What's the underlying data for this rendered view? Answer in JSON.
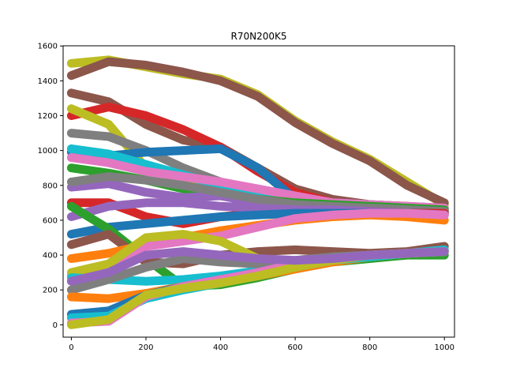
{
  "chart_data": {
    "type": "line",
    "title": "R70N200K5",
    "xlabel": "",
    "ylabel": "",
    "xlim": [
      -22,
      1027
    ],
    "ylim": [
      -71,
      1601
    ],
    "xticks": [
      0,
      200,
      400,
      600,
      800,
      1000
    ],
    "yticks": [
      0,
      200,
      400,
      600,
      800,
      1000,
      1200,
      1400,
      1600
    ],
    "grid": false,
    "legend": "none",
    "palette": [
      "#1f77b4",
      "#ff7f0e",
      "#2ca02c",
      "#d62728",
      "#9467bd",
      "#8c564b",
      "#e377c2",
      "#7f7f7f",
      "#bcbd22",
      "#17becf"
    ],
    "series": [
      {
        "color": "#bcbd22",
        "x": [
          0,
          100,
          200,
          300,
          400,
          500,
          600,
          700,
          800,
          900,
          1000
        ],
        "y": [
          1500,
          1520,
          1480,
          1440,
          1410,
          1320,
          1170,
          1050,
          950,
          820,
          690
        ]
      },
      {
        "color": "#8c564b",
        "x": [
          0,
          100,
          200,
          300,
          400,
          500,
          600,
          700,
          800,
          900,
          1000
        ],
        "y": [
          1430,
          1510,
          1490,
          1450,
          1400,
          1310,
          1160,
          1040,
          940,
          800,
          700
        ]
      },
      {
        "color": "#8c564b",
        "x": [
          0,
          100,
          200,
          300,
          400,
          500,
          600,
          700,
          800,
          900,
          1000
        ],
        "y": [
          1330,
          1280,
          1150,
          1060,
          1020,
          900,
          780,
          720,
          690,
          680,
          660
        ]
      },
      {
        "color": "#d62728",
        "x": [
          0,
          100,
          200,
          300,
          400,
          500,
          600,
          700,
          800,
          900,
          1000
        ],
        "y": [
          1200,
          1250,
          1200,
          1120,
          1020,
          880,
          760,
          700,
          680,
          660,
          640
        ]
      },
      {
        "color": "#bcbd22",
        "x": [
          0,
          100,
          200,
          300,
          400,
          500,
          600,
          700,
          800,
          900,
          1000
        ],
        "y": [
          1240,
          1150,
          900,
          830,
          780,
          740,
          700,
          680,
          670,
          660,
          650
        ]
      },
      {
        "color": "#7f7f7f",
        "x": [
          0,
          100,
          200,
          300,
          400,
          500,
          600,
          700,
          800,
          900,
          1000
        ],
        "y": [
          1100,
          1080,
          1000,
          900,
          820,
          760,
          720,
          700,
          690,
          680,
          670
        ]
      },
      {
        "color": "#1f77b4",
        "x": [
          0,
          100,
          200,
          300,
          400,
          500,
          600,
          700,
          800,
          900,
          1000
        ],
        "y": [
          990,
          970,
          990,
          1000,
          1010,
          900,
          720,
          690,
          670,
          660,
          650
        ]
      },
      {
        "color": "#17becf",
        "x": [
          0,
          100,
          200,
          300,
          400,
          500,
          600,
          700,
          800,
          900,
          1000
        ],
        "y": [
          1010,
          980,
          920,
          860,
          800,
          760,
          710,
          690,
          680,
          670,
          670
        ]
      },
      {
        "color": "#e377c2",
        "x": [
          0,
          100,
          200,
          300,
          400,
          500,
          600,
          700,
          800,
          900,
          1000
        ],
        "y": [
          960,
          930,
          880,
          850,
          820,
          780,
          740,
          700,
          690,
          680,
          670
        ]
      },
      {
        "color": "#2ca02c",
        "x": [
          0,
          100,
          200,
          300,
          400,
          500,
          600,
          700,
          800,
          900,
          1000
        ],
        "y": [
          900,
          870,
          830,
          780,
          740,
          720,
          700,
          690,
          680,
          670,
          660
        ]
      },
      {
        "color": "#9467bd",
        "x": [
          0,
          100,
          200,
          300,
          400,
          500,
          600,
          700,
          800,
          900,
          1000
        ],
        "y": [
          790,
          810,
          760,
          730,
          740,
          700,
          680,
          670,
          670,
          660,
          650
        ]
      },
      {
        "color": "#7f7f7f",
        "x": [
          0,
          100,
          200,
          300,
          400,
          500,
          600,
          700,
          800,
          900,
          1000
        ],
        "y": [
          820,
          850,
          830,
          800,
          760,
          720,
          690,
          680,
          670,
          660,
          650
        ]
      },
      {
        "color": "#d62728",
        "x": [
          0,
          100,
          200,
          300,
          400,
          500,
          600,
          700,
          800,
          900,
          1000
        ],
        "y": [
          700,
          700,
          620,
          580,
          620,
          640,
          650,
          650,
          650,
          640,
          640
        ]
      },
      {
        "color": "#9467bd",
        "x": [
          0,
          100,
          200,
          300,
          400,
          500,
          600,
          700,
          800,
          900,
          1000
        ],
        "y": [
          620,
          680,
          700,
          700,
          680,
          670,
          660,
          660,
          650,
          640,
          630
        ]
      },
      {
        "color": "#1f77b4",
        "x": [
          0,
          100,
          200,
          300,
          400,
          500,
          600,
          700,
          800,
          900,
          1000
        ],
        "y": [
          520,
          560,
          580,
          600,
          620,
          630,
          640,
          640,
          640,
          640,
          630
        ]
      },
      {
        "color": "#2ca02c",
        "x": [
          0,
          100,
          200,
          300,
          400,
          500,
          600,
          700,
          800,
          900,
          1000
        ],
        "y": [
          680,
          550,
          380,
          220,
          230,
          270,
          320,
          360,
          380,
          400,
          400
        ]
      },
      {
        "color": "#8c564b",
        "x": [
          0,
          100,
          200,
          300,
          400,
          500,
          600,
          700,
          800,
          900,
          1000
        ],
        "y": [
          460,
          520,
          360,
          350,
          400,
          420,
          430,
          420,
          410,
          420,
          450
        ]
      },
      {
        "color": "#ff7f0e",
        "x": [
          0,
          100,
          200,
          300,
          400,
          500,
          600,
          700,
          800,
          900,
          1000
        ],
        "y": [
          380,
          410,
          460,
          500,
          540,
          570,
          600,
          620,
          630,
          620,
          600
        ]
      },
      {
        "color": "#e377c2",
        "x": [
          0,
          100,
          200,
          300,
          400,
          500,
          600,
          700,
          800,
          900,
          1000
        ],
        "y": [
          280,
          320,
          450,
          480,
          510,
          560,
          610,
          630,
          640,
          640,
          630
        ]
      },
      {
        "color": "#bcbd22",
        "x": [
          0,
          100,
          200,
          300,
          400,
          500,
          600,
          700,
          800,
          900,
          1000
        ],
        "y": [
          300,
          350,
          500,
          520,
          480,
          380,
          360,
          380,
          400,
          410,
          420
        ]
      },
      {
        "color": "#17becf",
        "x": [
          0,
          100,
          200,
          300,
          400,
          500,
          600,
          700,
          800,
          900,
          1000
        ],
        "y": [
          270,
          260,
          250,
          260,
          280,
          310,
          340,
          370,
          390,
          410,
          420
        ]
      },
      {
        "color": "#7f7f7f",
        "x": [
          0,
          100,
          200,
          300,
          400,
          500,
          600,
          700,
          800,
          900,
          1000
        ],
        "y": [
          200,
          260,
          330,
          380,
          360,
          350,
          370,
          390,
          400,
          410,
          420
        ]
      },
      {
        "color": "#ff7f0e",
        "x": [
          0,
          100,
          200,
          300,
          400,
          500,
          600,
          700,
          800,
          900,
          1000
        ],
        "y": [
          160,
          150,
          180,
          220,
          250,
          280,
          320,
          360,
          390,
          410,
          420
        ]
      },
      {
        "color": "#1f77b4",
        "x": [
          0,
          100,
          200,
          300,
          400,
          500,
          600,
          700,
          800,
          900,
          1000
        ],
        "y": [
          60,
          80,
          170,
          220,
          260,
          300,
          350,
          380,
          400,
          410,
          420
        ]
      },
      {
        "color": "#17becf",
        "x": [
          0,
          100,
          200,
          300,
          400,
          500,
          600,
          700,
          800,
          900,
          1000
        ],
        "y": [
          40,
          50,
          150,
          200,
          240,
          290,
          330,
          370,
          390,
          410,
          430
        ]
      },
      {
        "color": "#e377c2",
        "x": [
          0,
          100,
          200,
          300,
          400,
          500,
          600,
          700,
          800,
          900,
          1000
        ],
        "y": [
          10,
          20,
          160,
          220,
          260,
          300,
          350,
          380,
          400,
          410,
          420
        ]
      },
      {
        "color": "#bcbd22",
        "x": [
          0,
          100,
          200,
          300,
          400,
          500,
          600,
          700,
          800,
          900,
          1000
        ],
        "y": [
          0,
          30,
          170,
          210,
          240,
          280,
          330,
          370,
          400,
          410,
          420
        ]
      },
      {
        "color": "#9467bd",
        "x": [
          0,
          100,
          200,
          300,
          400,
          500,
          600,
          700,
          800,
          900,
          1000
        ],
        "y": [
          250,
          300,
          400,
          420,
          400,
          380,
          370,
          380,
          400,
          410,
          420
        ]
      }
    ]
  }
}
